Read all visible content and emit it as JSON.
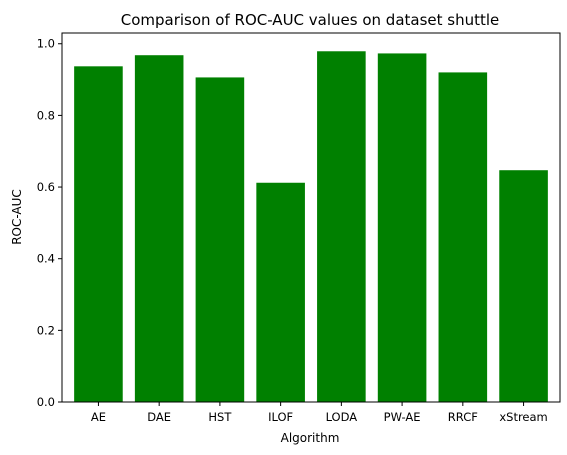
{
  "chart_data": {
    "type": "bar",
    "title": "Comparison of ROC-AUC values on dataset shuttle",
    "xlabel": "Algorithm",
    "ylabel": "ROC-AUC",
    "categories": [
      "AE",
      "DAE",
      "HST",
      "ILOF",
      "LODA",
      "PW-AE",
      "RRCF",
      "xStream"
    ],
    "values": [
      0.937,
      0.968,
      0.906,
      0.612,
      0.979,
      0.973,
      0.92,
      0.647
    ],
    "ylim": [
      0.0,
      1.03
    ],
    "yticks": [
      "0.0",
      "0.2",
      "0.4",
      "0.6",
      "0.8",
      "1.0"
    ],
    "bar_color": "#008000",
    "grid": false,
    "legend": "none"
  }
}
